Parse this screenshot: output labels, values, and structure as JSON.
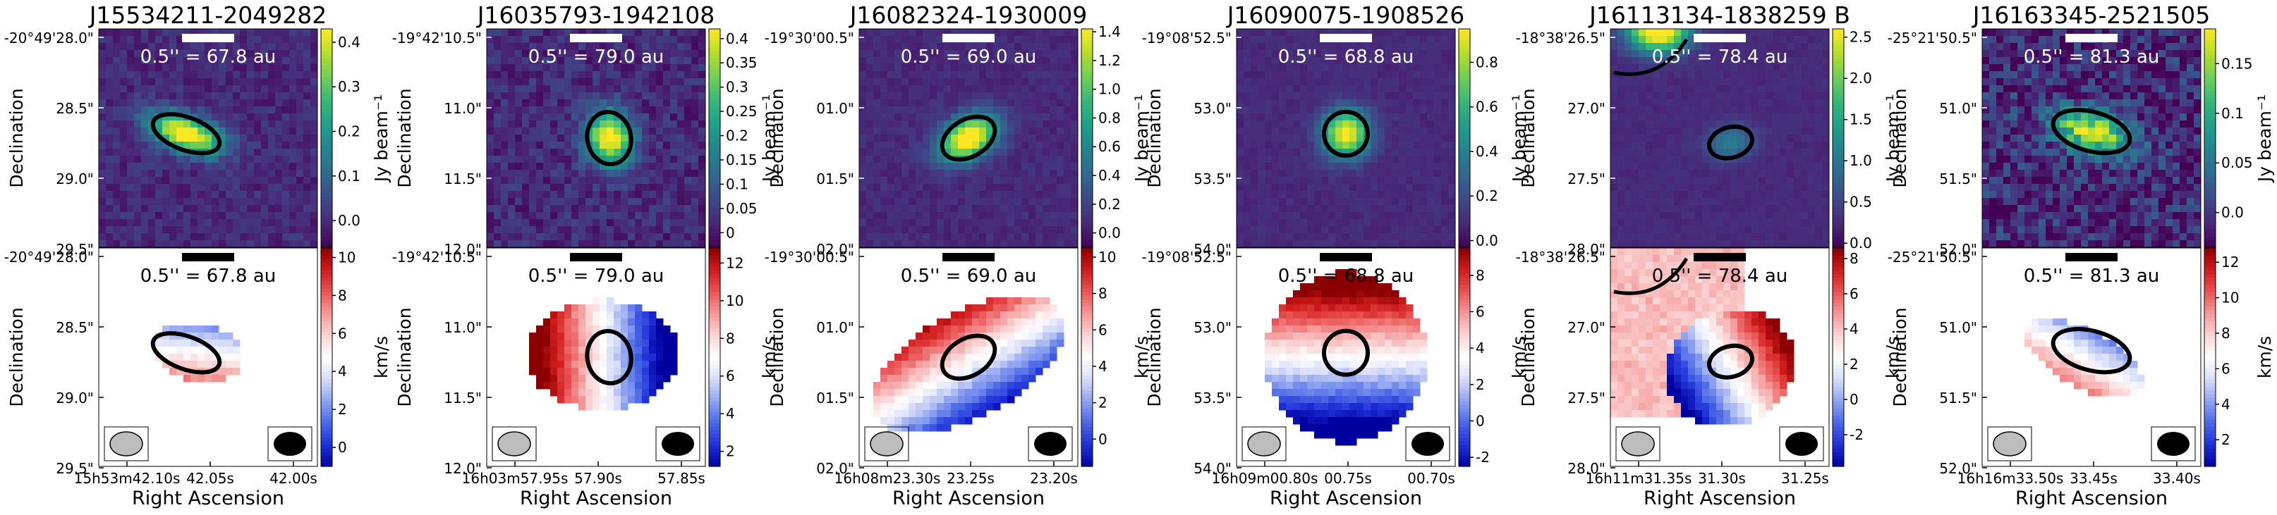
{
  "figure": {
    "ylabel": "Declination",
    "xlabel": "Right Ascension"
  },
  "colors": {
    "viridis": [
      "#440154",
      "#482878",
      "#3e4989",
      "#31688e",
      "#26828e",
      "#1f9e89",
      "#35b779",
      "#6ece58",
      "#b5de2b",
      "#fde725"
    ],
    "rdbu": [
      "#0000a0",
      "#1f30d8",
      "#4a67e6",
      "#8fa3f0",
      "#d7ddf8",
      "#ffffff",
      "#fbd5d5",
      "#f59a9a",
      "#ea5555",
      "#d01c1c",
      "#8b0000"
    ],
    "contour": "#000000",
    "scalebar_top": "#ffffff",
    "scalebar_bottom": "#000000"
  },
  "chart_data": [
    {
      "type": "heatmap",
      "title": "J15534211-2049282",
      "scale_label": "0.5'' = 67.8 au",
      "dec_ticks": [
        "-20°49'28.0\"",
        "28.5\"",
        "29.0\"",
        "29.5\""
      ],
      "ra_ticks": [
        "15h53m42.10s",
        "42.05s",
        "42.00s"
      ],
      "flux": {
        "unit": "Jy beam⁻¹",
        "ticks": [
          "0.0",
          "0.1",
          "0.2",
          "0.3",
          "0.4"
        ],
        "vmin": -0.06,
        "vmax": 0.43
      },
      "velocity": {
        "unit": "km/s",
        "ticks": [
          "0",
          "2",
          "4",
          "6",
          "8",
          "10"
        ],
        "vmin": -1.0,
        "vmax": 10.5
      }
    },
    {
      "type": "heatmap",
      "title": "J16035793-1942108",
      "scale_label": "0.5'' = 79.0 au",
      "dec_ticks": [
        "-19°42'10.5\"",
        "11.0\"",
        "11.5\"",
        "12.0\""
      ],
      "ra_ticks": [
        "16h03m57.95s",
        "57.90s",
        "57.85s"
      ],
      "flux": {
        "unit": "Jy beam⁻¹",
        "ticks": [
          "0",
          "0.05",
          "0.1",
          "0.15",
          "0.2",
          "0.25",
          "0.3",
          "0.35",
          "0.4"
        ],
        "vmin": -0.03,
        "vmax": 0.42
      },
      "velocity": {
        "unit": "km/s",
        "ticks": [
          "2",
          "4",
          "6",
          "8",
          "10",
          "12"
        ],
        "vmin": 1.2,
        "vmax": 12.8
      }
    },
    {
      "type": "heatmap",
      "title": "J16082324-1930009",
      "scale_label": "0.5'' = 69.0 au",
      "dec_ticks": [
        "-19°30'00.5\"",
        "01.0\"",
        "01.5\"",
        "02.0\""
      ],
      "ra_ticks": [
        "16h08m23.30s",
        "23.25s",
        "23.20s"
      ],
      "flux": {
        "unit": "Jy beam⁻¹",
        "ticks": [
          "0.0",
          "0.2",
          "0.4",
          "0.6",
          "0.8",
          "1.0",
          "1.2",
          "1.4"
        ],
        "vmin": -0.1,
        "vmax": 1.42
      },
      "velocity": {
        "unit": "km/s",
        "ticks": [
          "0",
          "2",
          "4",
          "6",
          "8",
          "10"
        ],
        "vmin": -1.5,
        "vmax": 10.5
      }
    },
    {
      "type": "heatmap",
      "title": "J16090075-1908526",
      "scale_label": "0.5'' = 68.8 au",
      "dec_ticks": [
        "-19°08'52.5\"",
        "53.0\"",
        "53.5\"",
        "54.0\""
      ],
      "ra_ticks": [
        "16h09m00.80s",
        "00.75s",
        "00.70s"
      ],
      "flux": {
        "unit": "Jy beam⁻¹",
        "ticks": [
          "0.0",
          "0.2",
          "0.4",
          "0.6",
          "0.8"
        ],
        "vmin": -0.03,
        "vmax": 0.95
      },
      "velocity": {
        "unit": "km/s",
        "ticks": [
          "-2",
          "0",
          "2",
          "4",
          "6",
          "8"
        ],
        "vmin": -2.5,
        "vmax": 9.5
      }
    },
    {
      "type": "heatmap",
      "title": "J16113134-1838259 B",
      "scale_label": "0.5'' = 78.4 au",
      "dec_ticks": [
        "-18°38'26.5\"",
        "27.0\"",
        "27.5\"",
        "28.0\""
      ],
      "ra_ticks": [
        "16h11m31.35s",
        "31.30s",
        "31.25s"
      ],
      "flux": {
        "unit": "Jy beam⁻¹",
        "ticks": [
          "0.0",
          "0.5",
          "1.0",
          "1.5",
          "2.0",
          "2.5"
        ],
        "vmin": -0.05,
        "vmax": 2.6
      },
      "velocity": {
        "unit": "km/s",
        "ticks": [
          "-2",
          "0",
          "2",
          "4",
          "6",
          "8"
        ],
        "vmin": -3.8,
        "vmax": 8.6
      }
    },
    {
      "type": "heatmap",
      "title": "J16163345-2521505",
      "scale_label": "0.5'' = 81.3 au",
      "dec_ticks": [
        "-25°21'50.5\"",
        "51.0\"",
        "51.5\"",
        "52.0\""
      ],
      "ra_ticks": [
        "16h16m33.50s",
        "33.45s",
        "33.40s"
      ],
      "flux": {
        "unit": "Jy beam⁻¹",
        "ticks": [
          "0.0",
          "0.05",
          "0.1",
          "0.15"
        ],
        "vmin": -0.035,
        "vmax": 0.185
      },
      "velocity": {
        "unit": "km/s",
        "ticks": [
          "2",
          "4",
          "6",
          "8",
          "10",
          "12"
        ],
        "vmin": 0.5,
        "vmax": 12.8
      }
    }
  ]
}
